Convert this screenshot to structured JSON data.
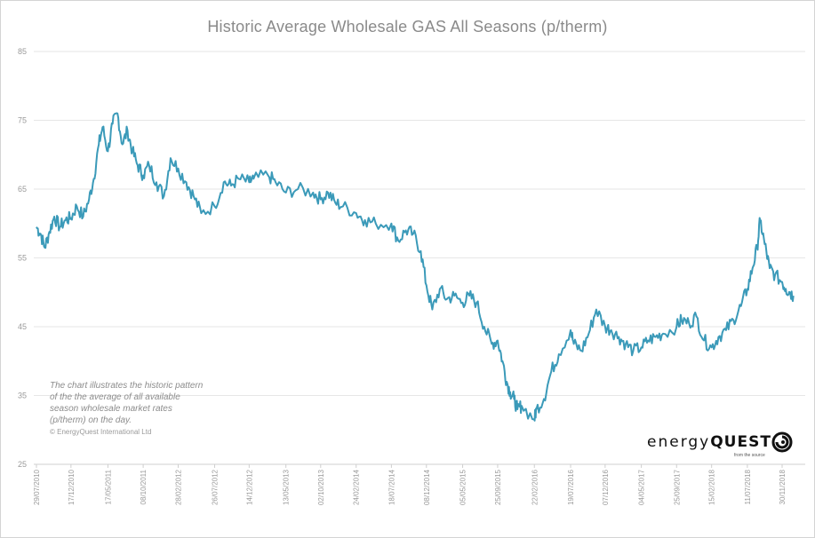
{
  "chart_data": {
    "type": "line",
    "title": "Historic Average Wholesale GAS All Seasons (p/therm)",
    "xlabel": "",
    "ylabel": "",
    "ylim": [
      25,
      85
    ],
    "yticks": [
      25,
      35,
      45,
      55,
      65,
      75,
      85
    ],
    "grid": "horizontal",
    "xtick_labels": [
      "29/07/2010",
      "17/12/2010",
      "17/05/2011",
      "08/10/2011",
      "28/02/2012",
      "26/07/2012",
      "14/12/2012",
      "13/05/2013",
      "02/10/2013",
      "24/02/2014",
      "18/07/2014",
      "08/12/2014",
      "05/05/2015",
      "25/09/2015",
      "22/02/2016",
      "19/07/2016",
      "07/12/2016",
      "04/05/2017",
      "25/09/2017",
      "15/02/2018",
      "11/07/2018",
      "30/11/2018"
    ],
    "series": [
      {
        "x": [
          "29/07/2010",
          "15/08/2010",
          "01/09/2010",
          "20/09/2010",
          "10/10/2010",
          "01/11/2010",
          "25/11/2010",
          "17/12/2010",
          "10/01/2011",
          "05/02/2011",
          "01/03/2011",
          "20/03/2011",
          "10/04/2011",
          "25/04/2011",
          "17/05/2011",
          "05/06/2011",
          "25/06/2011",
          "15/07/2011",
          "05/08/2011",
          "25/08/2011",
          "15/09/2011",
          "08/10/2011",
          "01/11/2011",
          "01/12/2011",
          "01/01/2012",
          "28/01/2012",
          "28/02/2012",
          "01/04/2012",
          "01/05/2012",
          "01/06/2012",
          "26/07/2012",
          "01/09/2012",
          "01/10/2012",
          "01/11/2012",
          "14/12/2012",
          "01/01/2013",
          "01/03/2013",
          "01/04/2013",
          "13/05/2013",
          "01/07/2013",
          "01/09/2013",
          "02/10/2013",
          "01/11/2013",
          "01/12/2013",
          "01/01/2014",
          "24/02/2014",
          "01/04/2014",
          "15/05/2014",
          "18/07/2014",
          "15/08/2014",
          "15/09/2014",
          "15/10/2014",
          "15/11/2014",
          "08/12/2014",
          "01/01/2015",
          "01/02/2015",
          "01/03/2015",
          "01/04/2015",
          "05/05/2015",
          "01/06/2015",
          "01/07/2015",
          "01/08/2015",
          "01/09/2015",
          "25/09/2015",
          "15/10/2015",
          "01/11/2015",
          "15/11/2015",
          "01/12/2015",
          "15/12/2015",
          "01/01/2016",
          "22/02/2016",
          "01/03/2016",
          "01/04/2016",
          "01/05/2016",
          "01/06/2016",
          "19/07/2016",
          "01/08/2016",
          "01/09/2016",
          "01/10/2016",
          "01/11/2016",
          "07/12/2016",
          "01/01/2017",
          "01/02/2017",
          "01/03/2017",
          "01/04/2017",
          "04/05/2017",
          "01/06/2017",
          "01/07/2017",
          "01/08/2017",
          "25/09/2017",
          "15/10/2017",
          "15/11/2017",
          "15/12/2017",
          "15/01/2018",
          "15/02/2018",
          "15/03/2018",
          "15/04/2018",
          "15/05/2018",
          "15/06/2018",
          "11/07/2018",
          "01/08/2018",
          "20/08/2018",
          "01/09/2018",
          "20/09/2018",
          "10/10/2018",
          "01/11/2018",
          "30/11/2018",
          "15/12/2018",
          "01/01/2019",
          "15/01/2019"
        ],
        "values": [
          59.5,
          58.5,
          56.5,
          58.8,
          61.0,
          59.5,
          60.5,
          60.8,
          62.5,
          61.0,
          63.5,
          66.5,
          71.5,
          74.0,
          70.5,
          74.5,
          76.0,
          71.5,
          73.5,
          70.5,
          68.5,
          67.0,
          68.5,
          66.0,
          64.0,
          69.5,
          68.0,
          66.0,
          64.0,
          61.5,
          62.5,
          66.0,
          65.5,
          66.5,
          66.0,
          66.5,
          67.0,
          66.0,
          64.5,
          65.0,
          64.5,
          63.5,
          64.5,
          63.0,
          62.5,
          61.5,
          60.5,
          60.0,
          60.0,
          57.5,
          59.0,
          58.5,
          56.0,
          51.0,
          47.5,
          50.5,
          49.0,
          49.5,
          48.5,
          49.5,
          48.5,
          45.0,
          42.5,
          43.0,
          40.0,
          37.0,
          35.5,
          34.5,
          33.0,
          33.5,
          31.5,
          33.0,
          34.5,
          38.5,
          41.0,
          44.5,
          42.5,
          41.5,
          44.0,
          47.5,
          45.0,
          44.5,
          43.5,
          42.5,
          41.5,
          42.0,
          43.0,
          43.5,
          44.0,
          45.0,
          46.0,
          45.5,
          46.5,
          43.0,
          42.0,
          43.5,
          44.5,
          46.0,
          48.0,
          50.5,
          53.5,
          56.5,
          60.5,
          57.0,
          53.5,
          52.5,
          51.5,
          50.5,
          50.0,
          49.5
        ]
      }
    ],
    "colors": {
      "line": "#3b9ab9",
      "grid": "#e6e6e6",
      "text": "#9a9a9a"
    }
  },
  "annotation": {
    "line1": "The chart illustrates the historic pattern",
    "line2": "of the the average of all available",
    "line3": "season wholesale market rates",
    "line4": "(p/therm) on the day.",
    "copyright": "© EnergyQuest International Ltd"
  },
  "logo": {
    "word1": "energy",
    "word2": "QUEST",
    "tagline": "from the source",
    "icon": "swirl-logo-icon"
  }
}
